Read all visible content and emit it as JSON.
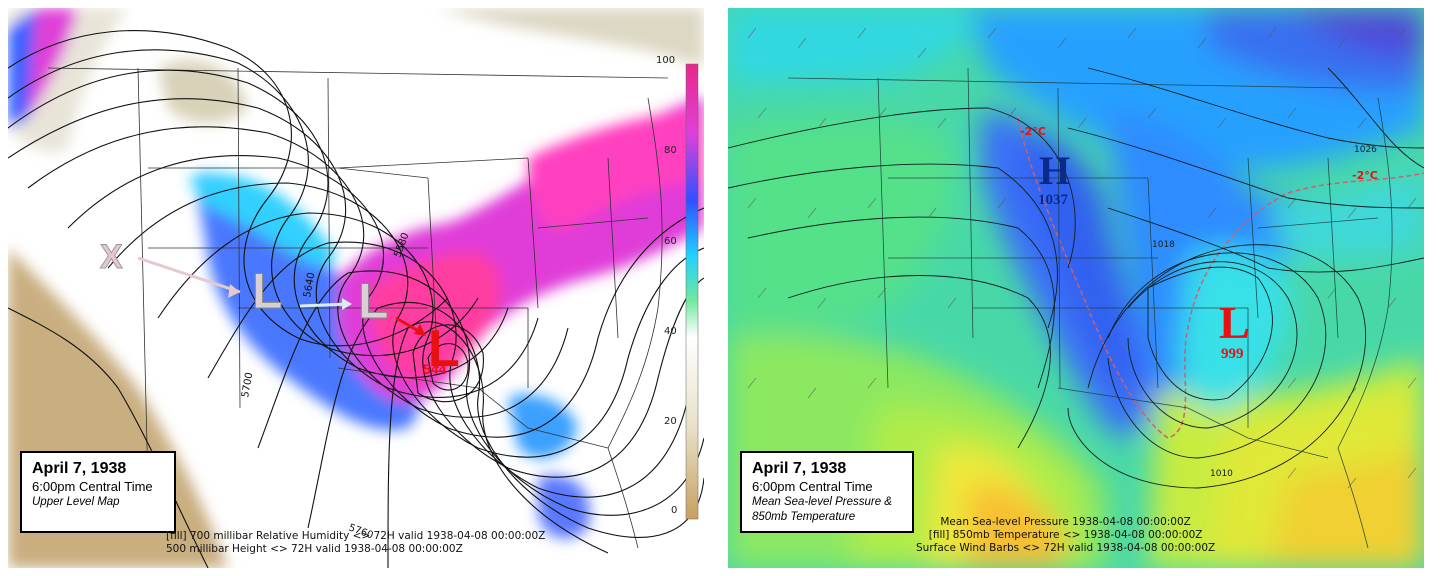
{
  "left_panel": {
    "date": "April 7, 1938",
    "time": "6:00pm Central Time",
    "subtitle": "Upper Level Map",
    "caption_line1": "[fill] 700 millibar Relative Humidity <> 72H valid 1938-04-08 00:00:00Z",
    "caption_line2": "500 millibar Height <> 72H valid 1938-04-08 00:00:00Z",
    "track_start_symbol": "X",
    "low_symbol": "L",
    "low_value": "544",
    "contour_labels": [
      "5580",
      "5640",
      "5700",
      "5760"
    ],
    "colorbar_ticks": [
      "100",
      "80",
      "60",
      "40",
      "20",
      "0"
    ],
    "colorbar_colors": [
      "#c8b07a",
      "#ffffff",
      "#7fe87f",
      "#22c8ff",
      "#3355ff",
      "#e830c8"
    ]
  },
  "right_panel": {
    "date": "April 7, 1938",
    "time": "6:00pm Central Time",
    "subtitle_line1": "Mean Sea-level Pressure &",
    "subtitle_line2": "850mb Temperature",
    "caption_line1": "Mean Sea-level Pressure 1938-04-08 00:00:00Z",
    "caption_line2": "[fill] 850mb Temperature <> 1938-04-08 00:00:00Z",
    "caption_line3": "Surface Wind Barbs <> 72H valid 1938-04-08 00:00:00Z",
    "high_symbol": "H",
    "high_value": "1037",
    "low_symbol": "L",
    "low_value": "999",
    "temp_label_1": "-2°C",
    "temp_label_2": "-2°C",
    "isobar_labels": [
      "1026",
      "1018",
      "1010"
    ],
    "high_color": "#0a2a8a",
    "low_color": "#e81010"
  }
}
